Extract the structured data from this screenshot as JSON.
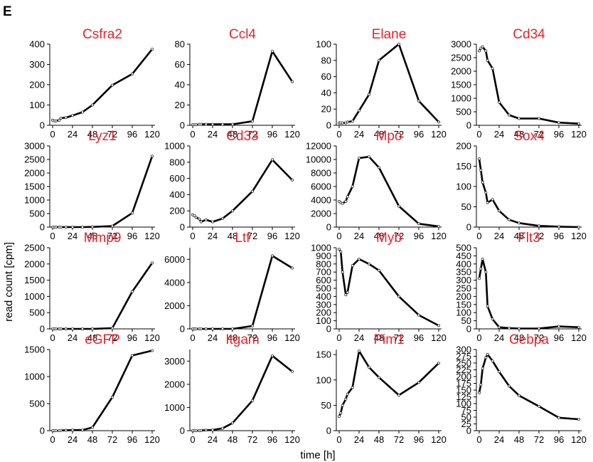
{
  "panel_label": "E",
  "colors": {
    "title": "#e8232a",
    "line": "#000000"
  },
  "chart_data": {
    "type": "line",
    "xlabel": "time [h]",
    "ylabel": "read count [cpm]",
    "x": [
      0,
      2,
      4,
      8,
      10,
      16,
      24,
      36,
      48,
      72,
      96,
      120
    ],
    "xticks": [
      0,
      24,
      48,
      72,
      96,
      120
    ],
    "xlim": [
      0,
      120
    ],
    "grid": false,
    "panels": [
      {
        "title": "Csfra2",
        "ylim": [
          0,
          400
        ],
        "yticks": [
          0,
          100,
          200,
          300,
          400
        ],
        "y": [
          25,
          22,
          22,
          25,
          35,
          38,
          48,
          65,
          100,
          198,
          253,
          375
        ]
      },
      {
        "title": "Ccl4",
        "ylim": [
          0,
          80
        ],
        "yticks": [
          0,
          20,
          40,
          60,
          80
        ],
        "y": [
          0.5,
          0.5,
          0.5,
          1,
          1,
          1,
          1,
          1,
          1,
          4,
          73,
          43
        ]
      },
      {
        "title": "Elane",
        "ylim": [
          0,
          100
        ],
        "yticks": [
          0,
          20,
          40,
          60,
          80,
          100
        ],
        "y": [
          3,
          3,
          3,
          3,
          4,
          5,
          18,
          38,
          80,
          100,
          30,
          4
        ]
      },
      {
        "title": "Cd34",
        "ylim": [
          0,
          3000
        ],
        "yticks": [
          0,
          500,
          1000,
          1500,
          2000,
          2500,
          3000
        ],
        "y": [
          2750,
          2850,
          2900,
          2750,
          2400,
          2100,
          850,
          380,
          250,
          250,
          100,
          60
        ]
      },
      {
        "title": "Lyz1",
        "ylim": [
          0,
          3000
        ],
        "yticks": [
          0,
          500,
          1000,
          1500,
          2000,
          2500,
          3000
        ],
        "y": [
          0,
          0,
          0,
          0,
          0,
          0,
          0,
          0,
          5,
          40,
          520,
          2620
        ]
      },
      {
        "title": "Cd33",
        "ylim": [
          0,
          1000
        ],
        "yticks": [
          0,
          200,
          400,
          600,
          800,
          1000
        ],
        "y": [
          150,
          140,
          120,
          100,
          65,
          90,
          65,
          105,
          200,
          440,
          830,
          580
        ]
      },
      {
        "title": "Mpo",
        "ylim": [
          0,
          12000
        ],
        "yticks": [
          0,
          2000,
          4000,
          6000,
          8000,
          10000,
          12000
        ],
        "y": [
          3800,
          3600,
          3500,
          3800,
          4500,
          6000,
          10200,
          10400,
          8800,
          3100,
          500,
          100
        ]
      },
      {
        "title": "Sox4",
        "ylim": [
          0,
          200
        ],
        "yticks": [
          0,
          50,
          100,
          150,
          200
        ],
        "y": [
          168,
          140,
          110,
          85,
          60,
          68,
          40,
          18,
          10,
          3,
          1,
          0
        ]
      },
      {
        "title": "Mmp9",
        "ylim": [
          0,
          2500
        ],
        "yticks": [
          0,
          500,
          1000,
          1500,
          2000,
          2500
        ],
        "y": [
          0,
          0,
          0,
          0,
          0,
          0,
          0,
          0,
          0,
          25,
          1150,
          2030
        ]
      },
      {
        "title": "Ltf",
        "ylim": [
          0,
          7000
        ],
        "yticks": [
          0,
          2000,
          4000,
          6000
        ],
        "y": [
          0,
          0,
          0,
          0,
          0,
          0,
          0,
          0,
          0,
          250,
          6300,
          5250
        ]
      },
      {
        "title": "Myb",
        "ylim": [
          0,
          1000
        ],
        "yticks": [
          0,
          100,
          200,
          300,
          400,
          500,
          600,
          700,
          800,
          900,
          1000
        ],
        "y": [
          980,
          950,
          700,
          420,
          450,
          780,
          860,
          800,
          720,
          400,
          170,
          40
        ]
      },
      {
        "title": "Flt3",
        "ylim": [
          0,
          500
        ],
        "yticks": [
          0,
          50,
          100,
          150,
          200,
          250,
          300,
          350,
          400,
          450,
          500
        ],
        "y": [
          310,
          370,
          430,
          350,
          140,
          60,
          10,
          5,
          2,
          2,
          15,
          10
        ]
      },
      {
        "title": "eGFP",
        "ylim": [
          0,
          1500
        ],
        "yticks": [
          0,
          500,
          1000,
          1500
        ],
        "y": [
          0,
          0,
          0,
          0,
          5,
          8,
          10,
          12,
          60,
          620,
          1390,
          1480
        ]
      },
      {
        "title": "Itgam",
        "ylim": [
          0,
          3500
        ],
        "yticks": [
          0,
          1000,
          2000,
          3000
        ],
        "y": [
          0,
          0,
          0,
          0,
          10,
          20,
          30,
          100,
          330,
          1300,
          3230,
          2550
        ]
      },
      {
        "title": "Pim1",
        "ylim": [
          0,
          160
        ],
        "yticks": [
          0,
          50,
          100,
          150
        ],
        "y": [
          28,
          35,
          50,
          62,
          72,
          85,
          157,
          125,
          105,
          70,
          95,
          133
        ]
      },
      {
        "title": "Cebpa",
        "ylim": [
          0,
          300
        ],
        "yticks": [
          0,
          25,
          50,
          75,
          100,
          125,
          150,
          175,
          200,
          225,
          250,
          275,
          300
        ],
        "y": [
          140,
          170,
          230,
          270,
          282,
          258,
          218,
          165,
          130,
          90,
          48,
          42
        ]
      }
    ]
  }
}
